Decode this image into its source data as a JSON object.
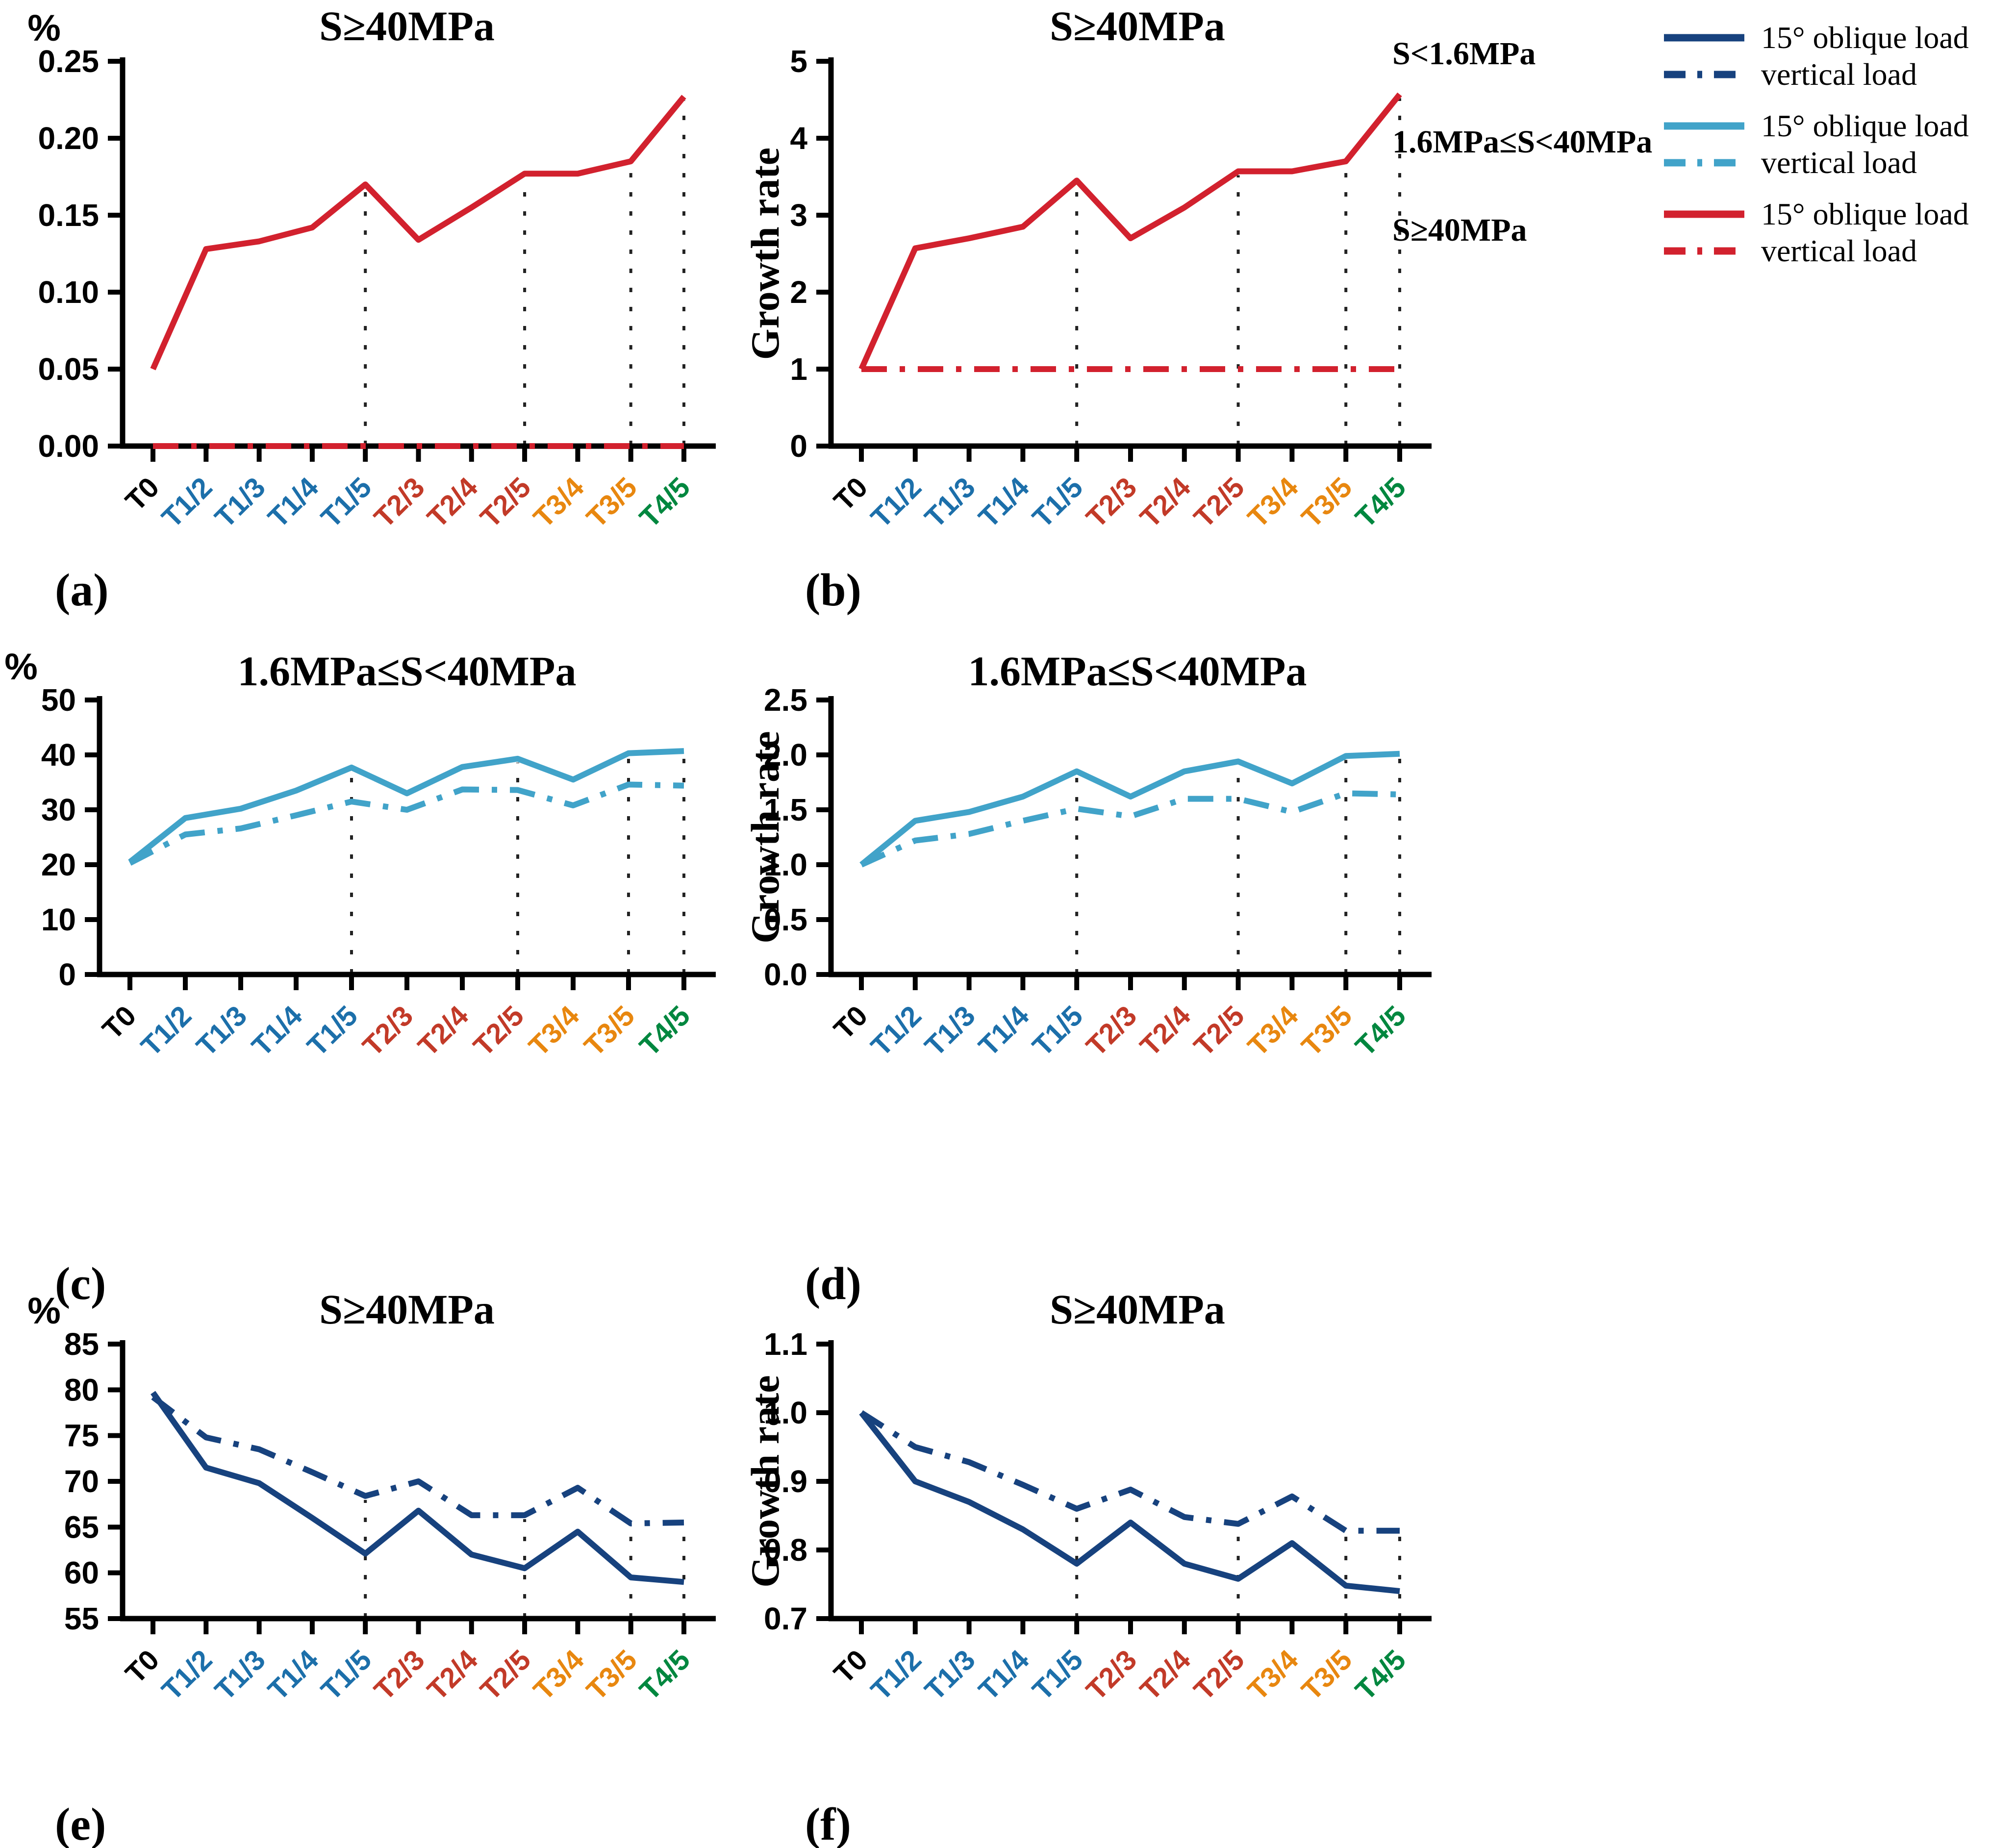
{
  "figure": {
    "x_categories": [
      {
        "label": "T0",
        "color": "#000000"
      },
      {
        "label": "T1/2",
        "color": "#1C6FAA"
      },
      {
        "label": "T1/3",
        "color": "#1C6FAA"
      },
      {
        "label": "T1/4",
        "color": "#1C6FAA"
      },
      {
        "label": "T1/5",
        "color": "#1C6FAA"
      },
      {
        "label": "T2/3",
        "color": "#C23A28"
      },
      {
        "label": "T2/4",
        "color": "#C23A28"
      },
      {
        "label": "T2/5",
        "color": "#C23A28"
      },
      {
        "label": "T3/4",
        "color": "#E8870F"
      },
      {
        "label": "T3/5",
        "color": "#E8870F"
      },
      {
        "label": "T4/5",
        "color": "#00873F"
      }
    ],
    "dropline_categories": [
      "T1/5",
      "T2/5",
      "T3/5",
      "T4/5"
    ],
    "axis_color": "#000000",
    "dropline_color": "#222222",
    "series_colors": {
      "s_lt_1_6MPa": "#17427E",
      "mid_1_6_to_40MPa": "#41A3C9",
      "s_ge_40MPa": "#D2212E"
    }
  },
  "legend": {
    "groups": [
      {
        "label": "S<1.6MPa",
        "color": "#17427E",
        "entries": [
          {
            "style": "solid",
            "label": "15° oblique load"
          },
          {
            "style": "dashdot",
            "label": "vertical load"
          }
        ]
      },
      {
        "label": "1.6MPa≤S<40MPa",
        "color": "#41A3C9",
        "entries": [
          {
            "style": "solid",
            "label": "15° oblique load"
          },
          {
            "style": "dashdot",
            "label": "vertical load"
          }
        ]
      },
      {
        "label": "S≥40MPa",
        "color": "#D2212E",
        "entries": [
          {
            "style": "solid",
            "label": "15° oblique load"
          },
          {
            "style": "dashdot",
            "label": "vertical load"
          }
        ]
      }
    ]
  },
  "chart_data": [
    {
      "id": "a",
      "letter": "(a)",
      "type": "line",
      "title": "S≥40MPa",
      "ylabel": "%",
      "ylabel_style": "corner",
      "ylim": [
        0,
        0.25
      ],
      "yticks": [
        "0.00",
        "0.05",
        "0.10",
        "0.15",
        "0.20",
        "0.25"
      ],
      "categories": [
        "T0",
        "T1/2",
        "T1/3",
        "T1/4",
        "T1/5",
        "T2/3",
        "T2/4",
        "T2/5",
        "T3/4",
        "T3/5",
        "T4/5"
      ],
      "series": [
        {
          "name": "15° oblique load",
          "style": "solid",
          "color": "#D2212E",
          "values": [
            0.05,
            0.128,
            0.133,
            0.142,
            0.17,
            0.134,
            0.155,
            0.177,
            0.177,
            0.185,
            0.227
          ]
        },
        {
          "name": "vertical load",
          "style": "dashdot",
          "color": "#D2212E",
          "values": [
            0,
            0,
            0,
            0,
            0,
            0,
            0,
            0,
            0,
            0,
            0
          ]
        }
      ],
      "droplines_at": [
        "T1/5",
        "T2/5",
        "T3/5",
        "T4/5"
      ],
      "grid": false,
      "legend_position": "none"
    },
    {
      "id": "b",
      "letter": "(b)",
      "type": "line",
      "title": "S≥40MPa",
      "ylabel": "Growth rate",
      "ylabel_style": "rotated",
      "ylim": [
        0,
        5
      ],
      "yticks": [
        "0",
        "1",
        "2",
        "3",
        "4",
        "5"
      ],
      "categories": [
        "T0",
        "T1/2",
        "T1/3",
        "T1/4",
        "T1/5",
        "T2/3",
        "T2/4",
        "T2/5",
        "T3/4",
        "T3/5",
        "T4/5"
      ],
      "series": [
        {
          "name": "15° oblique load",
          "style": "solid",
          "color": "#D2212E",
          "values": [
            1.0,
            2.57,
            2.7,
            2.85,
            3.45,
            2.7,
            3.1,
            3.57,
            3.57,
            3.7,
            4.57
          ]
        },
        {
          "name": "vertical load",
          "style": "dashdot",
          "color": "#D2212E",
          "values": [
            1,
            1,
            1,
            1,
            1,
            1,
            1,
            1,
            1,
            1,
            1
          ]
        }
      ],
      "droplines_at": [
        "T1/5",
        "T2/5",
        "T3/5",
        "T4/5"
      ],
      "grid": false,
      "legend_position": "none"
    },
    {
      "id": "c",
      "letter": "(c)",
      "type": "line",
      "title": "1.6MPa≤S<40MPa",
      "ylabel": "%",
      "ylabel_style": "corner",
      "ylim": [
        0,
        50
      ],
      "yticks": [
        "0",
        "10",
        "20",
        "30",
        "40",
        "50"
      ],
      "categories": [
        "T0",
        "T1/2",
        "T1/3",
        "T1/4",
        "T1/5",
        "T2/3",
        "T2/4",
        "T2/5",
        "T3/4",
        "T3/5",
        "T4/5"
      ],
      "series": [
        {
          "name": "15° oblique load",
          "style": "solid",
          "color": "#41A3C9",
          "values": [
            20.5,
            28.5,
            30.2,
            33.5,
            37.7,
            33.0,
            37.8,
            39.3,
            35.5,
            40.3,
            40.7
          ]
        },
        {
          "name": "vertical load",
          "style": "dashdot",
          "color": "#41A3C9",
          "values": [
            20.3,
            25.5,
            26.6,
            29.0,
            31.5,
            30.0,
            33.7,
            33.6,
            30.8,
            34.6,
            34.4
          ]
        }
      ],
      "droplines_at": [
        "T1/5",
        "T2/5",
        "T3/5",
        "T4/5"
      ],
      "grid": false,
      "legend_position": "none"
    },
    {
      "id": "d",
      "letter": "(d)",
      "type": "line",
      "title": "1.6MPa≤S<40MPa",
      "ylabel": "Growth rate",
      "ylabel_style": "rotated",
      "ylim": [
        0,
        2.5
      ],
      "yticks": [
        "0.0",
        "0.5",
        "1.0",
        "1.5",
        "2.0",
        "2.5"
      ],
      "categories": [
        "T0",
        "T1/2",
        "T1/3",
        "T1/4",
        "T1/5",
        "T2/3",
        "T2/4",
        "T2/5",
        "T3/4",
        "T3/5",
        "T4/5"
      ],
      "series": [
        {
          "name": "15° oblique load",
          "style": "solid",
          "color": "#41A3C9",
          "values": [
            1.0,
            1.4,
            1.48,
            1.62,
            1.85,
            1.62,
            1.85,
            1.94,
            1.74,
            1.99,
            2.01
          ]
        },
        {
          "name": "vertical load",
          "style": "dashdot",
          "color": "#41A3C9",
          "values": [
            1.0,
            1.22,
            1.28,
            1.4,
            1.51,
            1.44,
            1.6,
            1.6,
            1.48,
            1.65,
            1.64
          ]
        }
      ],
      "droplines_at": [
        "T1/5",
        "T2/5",
        "T3/5",
        "T4/5"
      ],
      "grid": false,
      "legend_position": "none"
    },
    {
      "id": "e",
      "letter": "(e)",
      "type": "line",
      "title": "S≥40MPa",
      "ylabel": "%",
      "ylabel_style": "corner",
      "ylim": [
        55,
        85
      ],
      "yticks": [
        "55",
        "60",
        "65",
        "70",
        "75",
        "80",
        "85"
      ],
      "categories": [
        "T0",
        "T1/2",
        "T1/3",
        "T1/4",
        "T1/5",
        "T2/3",
        "T2/4",
        "T2/5",
        "T3/4",
        "T3/5",
        "T4/5"
      ],
      "series": [
        {
          "name": "15° oblique load",
          "style": "solid",
          "color": "#17427E",
          "values": [
            79.7,
            71.5,
            69.8,
            66.0,
            62.1,
            66.8,
            62.0,
            60.5,
            64.5,
            59.5,
            59.0
          ]
        },
        {
          "name": "vertical load",
          "style": "dashdot",
          "color": "#17427E",
          "values": [
            79.2,
            74.8,
            73.5,
            71.0,
            68.4,
            70.0,
            66.3,
            66.3,
            69.3,
            65.4,
            65.5
          ]
        }
      ],
      "droplines_at": [
        "T1/5",
        "T2/5",
        "T3/5",
        "T4/5"
      ],
      "grid": false,
      "legend_position": "none"
    },
    {
      "id": "f",
      "letter": "(f)",
      "type": "line",
      "title": "S≥40MPa",
      "ylabel": "Growth rate",
      "ylabel_style": "rotated",
      "ylim": [
        0.7,
        1.1
      ],
      "yticks": [
        "0.7",
        "0.8",
        "0.9",
        "1.0",
        "1.1"
      ],
      "categories": [
        "T0",
        "T1/2",
        "T1/3",
        "T1/4",
        "T1/5",
        "T2/3",
        "T2/4",
        "T2/5",
        "T3/4",
        "T3/5",
        "T4/5"
      ],
      "series": [
        {
          "name": "15° oblique load",
          "style": "solid",
          "color": "#17427E",
          "values": [
            1.0,
            0.9,
            0.87,
            0.83,
            0.78,
            0.84,
            0.78,
            0.758,
            0.81,
            0.748,
            0.74
          ]
        },
        {
          "name": "vertical load",
          "style": "dashdot",
          "color": "#17427E",
          "values": [
            1.0,
            0.95,
            0.928,
            0.895,
            0.86,
            0.888,
            0.848,
            0.838,
            0.878,
            0.828,
            0.828
          ]
        }
      ],
      "droplines_at": [
        "T1/5",
        "T2/5",
        "T3/5",
        "T4/5"
      ],
      "grid": false,
      "legend_position": "none"
    }
  ]
}
